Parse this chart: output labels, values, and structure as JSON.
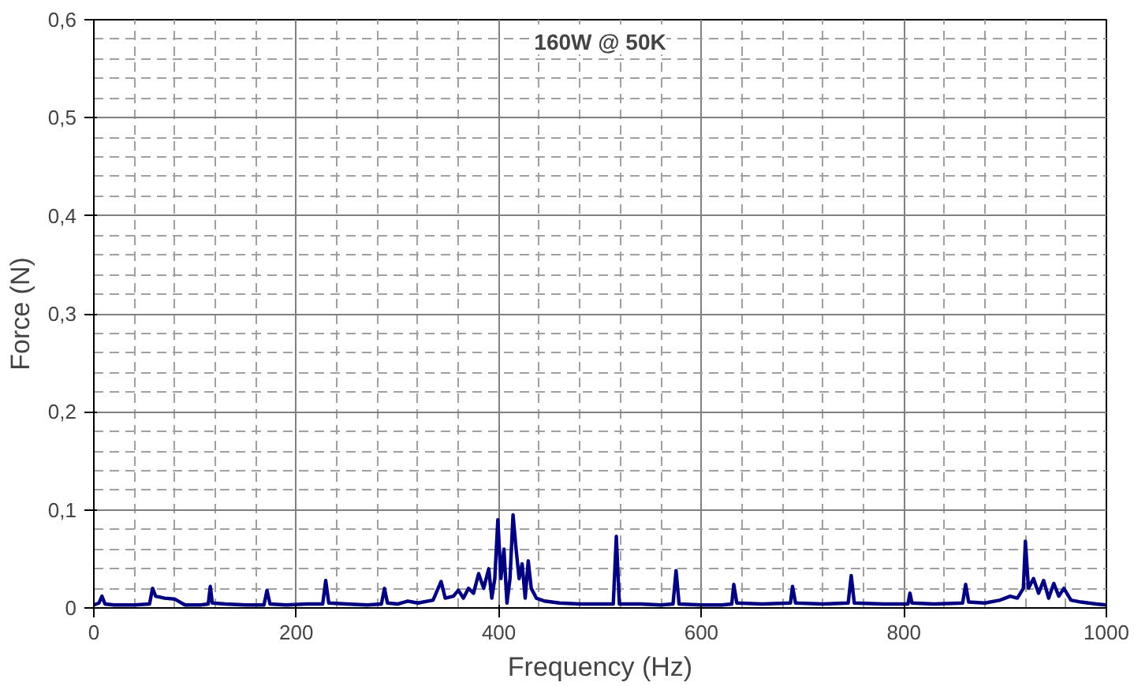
{
  "chart_data": {
    "type": "line",
    "title": "160W @ 50K",
    "xlabel": "Frequency (Hz)",
    "ylabel": "Force (N)",
    "x": [
      0,
      5,
      8,
      11,
      20,
      40,
      55,
      58,
      61,
      70,
      80,
      90,
      105,
      113,
      115,
      117,
      130,
      150,
      168,
      171,
      174,
      190,
      210,
      226,
      229,
      232,
      250,
      270,
      284,
      287,
      290,
      300,
      310,
      320,
      335,
      343,
      347,
      355,
      360,
      365,
      370,
      375,
      380,
      385,
      390,
      393,
      396,
      399,
      402,
      405,
      408,
      411,
      414,
      417,
      420,
      423,
      426,
      429,
      432,
      437,
      445,
      460,
      480,
      500,
      513,
      516,
      519,
      540,
      560,
      572,
      575,
      578,
      600,
      620,
      630,
      632,
      635,
      660,
      688,
      690,
      693,
      720,
      745,
      748,
      751,
      780,
      804,
      806,
      808,
      830,
      858,
      861,
      864,
      880,
      895,
      905,
      912,
      918,
      920,
      923,
      928,
      933,
      938,
      943,
      948,
      953,
      958,
      965,
      975,
      990,
      1000
    ],
    "series": [
      {
        "color": "#000080",
        "values": [
          0.003,
          0.005,
          0.012,
          0.004,
          0.003,
          0.003,
          0.004,
          0.02,
          0.012,
          0.01,
          0.009,
          0.003,
          0.003,
          0.004,
          0.022,
          0.005,
          0.004,
          0.003,
          0.003,
          0.018,
          0.004,
          0.003,
          0.004,
          0.004,
          0.028,
          0.005,
          0.004,
          0.003,
          0.004,
          0.02,
          0.005,
          0.004,
          0.007,
          0.005,
          0.008,
          0.027,
          0.01,
          0.012,
          0.018,
          0.01,
          0.02,
          0.015,
          0.035,
          0.02,
          0.04,
          0.01,
          0.03,
          0.09,
          0.03,
          0.06,
          0.005,
          0.03,
          0.095,
          0.06,
          0.03,
          0.045,
          0.01,
          0.048,
          0.02,
          0.01,
          0.007,
          0.005,
          0.004,
          0.004,
          0.004,
          0.073,
          0.004,
          0.004,
          0.003,
          0.004,
          0.038,
          0.004,
          0.003,
          0.003,
          0.004,
          0.024,
          0.005,
          0.004,
          0.005,
          0.022,
          0.005,
          0.004,
          0.005,
          0.033,
          0.005,
          0.004,
          0.004,
          0.015,
          0.005,
          0.004,
          0.005,
          0.024,
          0.006,
          0.005,
          0.008,
          0.012,
          0.01,
          0.02,
          0.068,
          0.02,
          0.03,
          0.015,
          0.028,
          0.01,
          0.025,
          0.012,
          0.02,
          0.008,
          0.006,
          0.004,
          0.003
        ]
      }
    ],
    "xlim": [
      0,
      1000
    ],
    "ylim": [
      0,
      0.6
    ],
    "xticks": [
      0,
      200,
      400,
      600,
      800,
      1000
    ],
    "yticks": [
      0,
      {
        "value": 0.1,
        "label": "0,1"
      },
      {
        "value": 0.2,
        "label": "0,2"
      },
      {
        "value": 0.3,
        "label": "0,3"
      },
      {
        "value": 0.4,
        "label": "0,4"
      },
      {
        "value": 0.5,
        "label": "0,5"
      },
      {
        "value": 0.6,
        "label": "0,6"
      }
    ],
    "grid": true,
    "marker": "none",
    "line_style": "solid"
  }
}
